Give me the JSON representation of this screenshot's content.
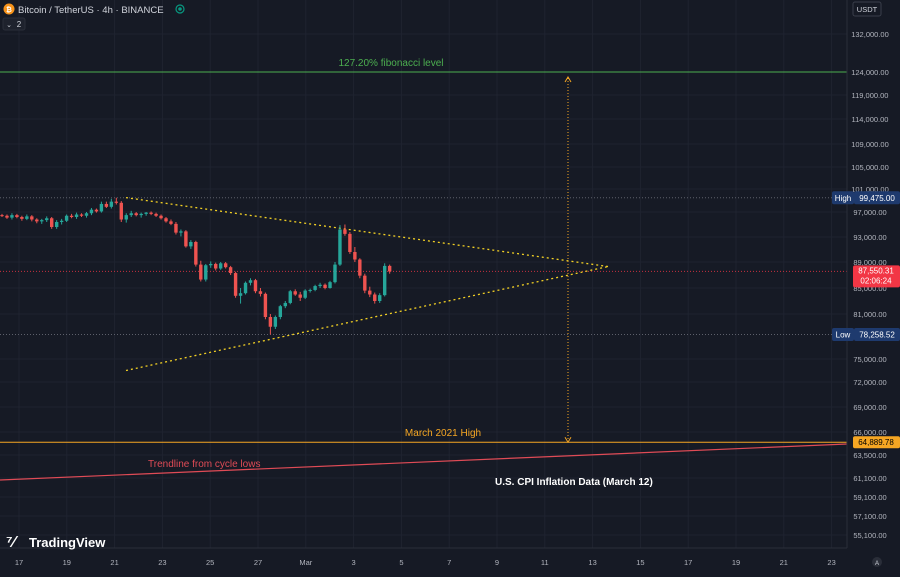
{
  "header": {
    "symbol": "Bitcoin / TetherUS · 4h · BINANCE",
    "indicator_count": "2",
    "currency": "USDT"
  },
  "logo": {
    "text": "TradingView"
  },
  "colors": {
    "background": "#161a25",
    "up": "#26a69a",
    "down": "#ef5350",
    "fib": "#4caf50",
    "march2021": "#f5a623",
    "trendline": "#e04b56",
    "triangle": "#f2d024",
    "label_blue": "#1e3a6e",
    "price_red": "#f23645"
  },
  "chart_data": {
    "type": "candlestick",
    "y_ticks": [
      "132,000.00",
      "124,000.00",
      "119,000.00",
      "114,000.00",
      "109,000.00",
      "105,000.00",
      "101,000.00",
      "97,000.00",
      "93,000.00",
      "89,000.00",
      "85,000.00",
      "81,000.00",
      "75,000.00",
      "72,000.00",
      "69,000.00",
      "66,000.00",
      "63,500.00",
      "61,100.00",
      "59,100.00",
      "57,100.00",
      "55,100.00"
    ],
    "x_ticks": [
      "17",
      "19",
      "21",
      "23",
      "25",
      "27",
      "Mar",
      "3",
      "5",
      "7",
      "9",
      "11",
      "13",
      "15",
      "17",
      "19",
      "21",
      "23"
    ],
    "y_tick_values": [
      132000,
      124000,
      119000,
      114000,
      109000,
      105000,
      101000,
      97000,
      93000,
      89000,
      85000,
      81000,
      75000,
      72000,
      69000,
      66000,
      63500,
      61100,
      59100,
      57100,
      55100
    ],
    "x_tick_days": [
      0,
      2,
      4,
      6,
      8,
      10,
      12,
      14,
      16,
      18,
      20,
      22,
      24,
      26,
      28,
      30,
      32,
      34
    ],
    "levels": {
      "fib": {
        "label": "127.20% fibonacci level",
        "value": 124000
      },
      "high": {
        "tag": "High",
        "value_text": "99,475.00",
        "value": 99475
      },
      "low": {
        "tag": "Low",
        "value_text": "78,258.52",
        "value": 78258.52
      },
      "march2021": {
        "label": "March 2021 High",
        "value_text": "64,889.78",
        "value": 64889.78
      },
      "current": {
        "value_text": "87,550.31",
        "countdown": "02:06:24",
        "value": 87550.31
      }
    },
    "annotations": {
      "trendline": "Trendline from cycle lows",
      "cpi": "U.S. CPI Inflation Data (March 12)"
    },
    "candles": [
      [
        96500,
        96700,
        96200,
        96400
      ],
      [
        96400,
        96600,
        95900,
        96100
      ],
      [
        96100,
        96800,
        95800,
        96500
      ],
      [
        96500,
        96700,
        96000,
        96200
      ],
      [
        96200,
        96400,
        95600,
        95900
      ],
      [
        95900,
        96600,
        95700,
        96300
      ],
      [
        96300,
        96500,
        95500,
        95800
      ],
      [
        95800,
        96000,
        95200,
        95500
      ],
      [
        95500,
        95900,
        95100,
        95700
      ],
      [
        95700,
        96300,
        95400,
        96000
      ],
      [
        96000,
        96200,
        94300,
        94600
      ],
      [
        94600,
        95700,
        94300,
        95400
      ],
      [
        95400,
        95900,
        95000,
        95600
      ],
      [
        95600,
        96600,
        95400,
        96400
      ],
      [
        96400,
        96700,
        96000,
        96200
      ],
      [
        96200,
        96900,
        95900,
        96600
      ],
      [
        96600,
        96800,
        96200,
        96400
      ],
      [
        96400,
        97000,
        96100,
        96800
      ],
      [
        96800,
        97700,
        96500,
        97400
      ],
      [
        97400,
        97600,
        96900,
        97100
      ],
      [
        97100,
        98800,
        96900,
        98400
      ],
      [
        98400,
        98800,
        97700,
        97900
      ],
      [
        97900,
        99300,
        97600,
        98800
      ],
      [
        98800,
        99475,
        98300,
        98600
      ],
      [
        98600,
        98900,
        95400,
        95800
      ],
      [
        95800,
        96800,
        95300,
        96500
      ],
      [
        96500,
        97200,
        96200,
        96800
      ],
      [
        96800,
        97000,
        96300,
        96500
      ],
      [
        96500,
        96900,
        96100,
        96700
      ],
      [
        96700,
        97000,
        96400,
        96900
      ],
      [
        96900,
        97100,
        96500,
        96700
      ],
      [
        96700,
        96900,
        96200,
        96400
      ],
      [
        96400,
        96600,
        95800,
        96000
      ],
      [
        96000,
        96200,
        95300,
        95500
      ],
      [
        95500,
        95800,
        94900,
        95100
      ],
      [
        95100,
        95400,
        93400,
        93700
      ],
      [
        93700,
        94200,
        93100,
        93900
      ],
      [
        93900,
        94100,
        91300,
        91500
      ],
      [
        91500,
        92500,
        91100,
        92200
      ],
      [
        92200,
        92400,
        88300,
        88600
      ],
      [
        88600,
        89200,
        86000,
        86300
      ],
      [
        86300,
        88700,
        86000,
        88500
      ],
      [
        88500,
        89100,
        88100,
        88700
      ],
      [
        88700,
        88900,
        87700,
        88000
      ],
      [
        88000,
        89000,
        87800,
        88800
      ],
      [
        88800,
        89000,
        88000,
        88200
      ],
      [
        88200,
        88400,
        87000,
        87300
      ],
      [
        87300,
        87500,
        83500,
        83800
      ],
      [
        83800,
        85000,
        82600,
        84200
      ],
      [
        84200,
        86000,
        84000,
        85800
      ],
      [
        85800,
        86500,
        85400,
        86200
      ],
      [
        86200,
        86400,
        84200,
        84500
      ],
      [
        84500,
        85000,
        83700,
        84100
      ],
      [
        84100,
        84300,
        80300,
        80600
      ],
      [
        80600,
        81000,
        78258,
        79300
      ],
      [
        79300,
        80800,
        79000,
        80600
      ],
      [
        80600,
        82400,
        80300,
        82200
      ],
      [
        82200,
        83000,
        81900,
        82700
      ],
      [
        82700,
        84700,
        82500,
        84500
      ],
      [
        84500,
        84800,
        83800,
        84000
      ],
      [
        84000,
        84400,
        83000,
        83500
      ],
      [
        83500,
        84800,
        83300,
        84600
      ],
      [
        84600,
        84900,
        84300,
        84700
      ],
      [
        84700,
        85500,
        84500,
        85300
      ],
      [
        85300,
        85800,
        85000,
        85500
      ],
      [
        85500,
        85700,
        84800,
        85000
      ],
      [
        85000,
        86100,
        84900,
        85900
      ],
      [
        85900,
        89000,
        85700,
        88600
      ],
      [
        88600,
        94900,
        88400,
        94200
      ],
      [
        94200,
        95000,
        93200,
        93500
      ],
      [
        93500,
        93800,
        90300,
        90600
      ],
      [
        90600,
        91400,
        89000,
        89400
      ],
      [
        89400,
        89600,
        86500,
        86900
      ],
      [
        86900,
        87200,
        84200,
        84600
      ],
      [
        84600,
        85200,
        83600,
        84000
      ],
      [
        84000,
        84300,
        82600,
        83000
      ],
      [
        83000,
        84200,
        82700,
        83900
      ],
      [
        83900,
        88800,
        83700,
        88400
      ],
      [
        88400,
        88600,
        87200,
        87550
      ]
    ]
  }
}
